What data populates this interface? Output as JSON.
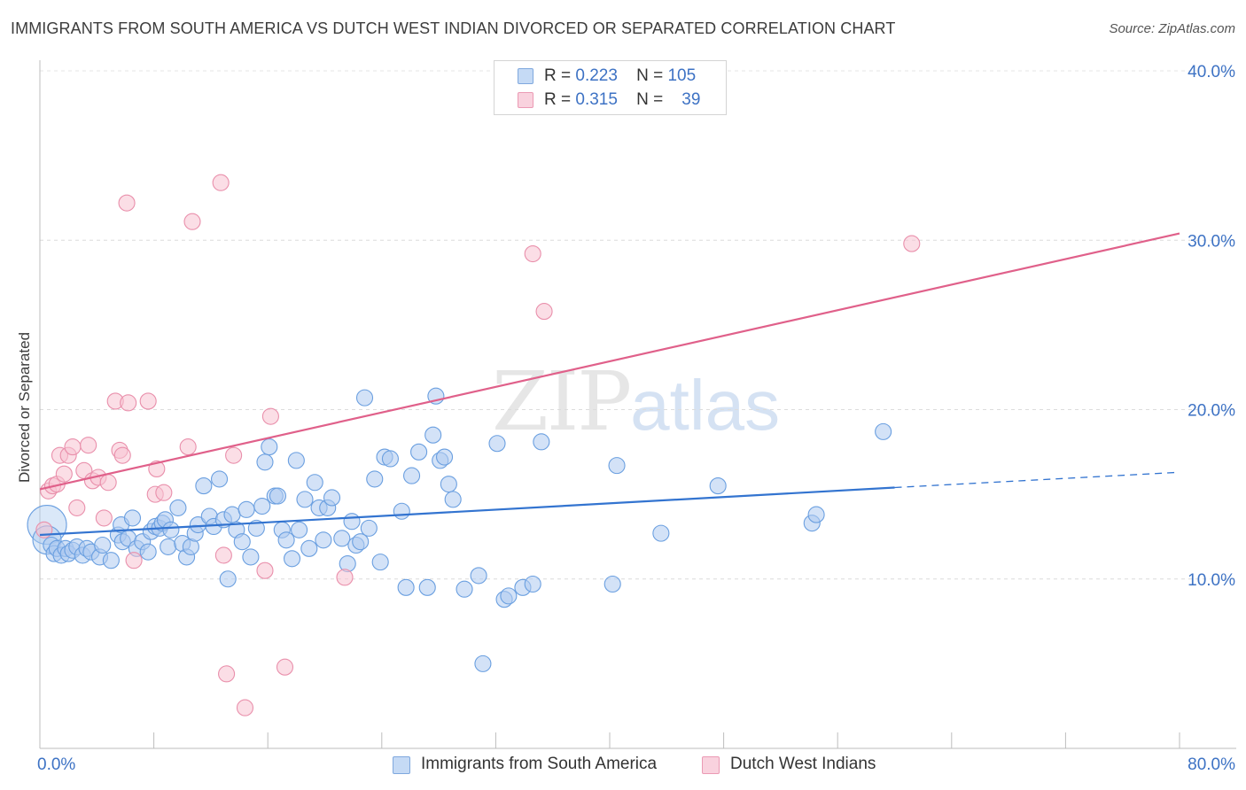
{
  "header": {
    "title": "IMMIGRANTS FROM SOUTH AMERICA VS DUTCH WEST INDIAN DIVORCED OR SEPARATED CORRELATION CHART",
    "source": "Source: ZipAtlas.com"
  },
  "watermark": {
    "zip": "ZIP",
    "atlas": "atlas"
  },
  "legend_top": {
    "rows": [
      {
        "r_label": "R =",
        "r_value": "0.223",
        "n_label": "N =",
        "n_value": "105",
        "color": "#aecbf0"
      },
      {
        "r_label": "R =",
        "r_value": "0.315",
        "n_label": "N =",
        "n_value": "39",
        "color": "#f7c3d2"
      }
    ]
  },
  "chart_data": {
    "type": "scatter",
    "title": "IMMIGRANTS FROM SOUTH AMERICA VS DUTCH WEST INDIAN DIVORCED OR SEPARATED CORRELATION CHART",
    "xlabel": "",
    "ylabel": "Divorced or Separated",
    "xlim": [
      0,
      80
    ],
    "ylim": [
      0,
      40
    ],
    "x_tick_labels": [
      "0.0%",
      "80.0%"
    ],
    "y_ticks": [
      10,
      20,
      30,
      40
    ],
    "y_tick_labels": [
      "10.0%",
      "20.0%",
      "30.0%",
      "40.0%"
    ],
    "grid": true,
    "legend_position": "bottom-center",
    "series": [
      {
        "name": "Immigrants from South America",
        "color": "#6a9fe0",
        "fill": "#aecbf0",
        "trend": {
          "x0": 0,
          "y0": 12.6,
          "x1": 60,
          "y1": 15.4,
          "dashed_to_x": 80,
          "dashed_to_y": 16.3,
          "color": "#3374d0"
        },
        "points": [
          [
            0.5,
            13.2
          ],
          [
            0.5,
            12.3
          ],
          [
            0.8,
            12.0
          ],
          [
            1,
            11.5
          ],
          [
            1.2,
            11.8
          ],
          [
            1.5,
            11.4
          ],
          [
            1.8,
            11.8
          ],
          [
            2,
            11.5
          ],
          [
            2.3,
            11.7
          ],
          [
            2.6,
            11.9
          ],
          [
            3,
            11.4
          ],
          [
            3.3,
            11.8
          ],
          [
            3.6,
            11.6
          ],
          [
            4.2,
            11.3
          ],
          [
            4.4,
            12.0
          ],
          [
            5,
            11.1
          ],
          [
            5.5,
            12.6
          ],
          [
            5.7,
            13.2
          ],
          [
            5.8,
            12.2
          ],
          [
            6.2,
            12.4
          ],
          [
            6.5,
            13.6
          ],
          [
            6.8,
            11.8
          ],
          [
            7.2,
            12.2
          ],
          [
            7.6,
            11.6
          ],
          [
            7.8,
            12.8
          ],
          [
            8.1,
            13.1
          ],
          [
            8.4,
            13.0
          ],
          [
            8.6,
            13.3
          ],
          [
            8.8,
            13.5
          ],
          [
            9,
            11.9
          ],
          [
            9.2,
            12.9
          ],
          [
            9.7,
            14.2
          ],
          [
            10.0,
            12.1
          ],
          [
            10.3,
            11.3
          ],
          [
            10.6,
            11.9
          ],
          [
            10.9,
            12.7
          ],
          [
            11.1,
            13.2
          ],
          [
            11.5,
            15.5
          ],
          [
            11.9,
            13.7
          ],
          [
            12.2,
            13.1
          ],
          [
            12.6,
            15.9
          ],
          [
            12.9,
            13.5
          ],
          [
            13.2,
            10.0
          ],
          [
            13.5,
            13.8
          ],
          [
            13.8,
            12.9
          ],
          [
            14.2,
            12.2
          ],
          [
            14.5,
            14.1
          ],
          [
            14.8,
            11.3
          ],
          [
            15.2,
            13.0
          ],
          [
            15.6,
            14.3
          ],
          [
            15.8,
            16.9
          ],
          [
            16.1,
            17.8
          ],
          [
            16.5,
            14.9
          ],
          [
            16.7,
            14.9
          ],
          [
            17.0,
            12.9
          ],
          [
            17.3,
            12.3
          ],
          [
            17.7,
            11.2
          ],
          [
            18.0,
            17.0
          ],
          [
            18.2,
            12.9
          ],
          [
            18.6,
            14.7
          ],
          [
            18.9,
            11.8
          ],
          [
            19.3,
            15.7
          ],
          [
            19.6,
            14.2
          ],
          [
            19.9,
            12.3
          ],
          [
            20.2,
            14.2
          ],
          [
            20.5,
            14.8
          ],
          [
            21.2,
            12.4
          ],
          [
            21.6,
            10.9
          ],
          [
            21.9,
            13.4
          ],
          [
            22.2,
            12.0
          ],
          [
            22.5,
            12.2
          ],
          [
            22.8,
            20.7
          ],
          [
            23.1,
            13.0
          ],
          [
            23.5,
            15.9
          ],
          [
            23.9,
            11.0
          ],
          [
            24.2,
            17.2
          ],
          [
            24.6,
            17.1
          ],
          [
            25.4,
            14.0
          ],
          [
            25.7,
            9.5
          ],
          [
            26.1,
            16.1
          ],
          [
            26.6,
            17.5
          ],
          [
            27.2,
            9.5
          ],
          [
            27.6,
            18.5
          ],
          [
            27.8,
            20.8
          ],
          [
            28.1,
            17.0
          ],
          [
            28.4,
            17.2
          ],
          [
            28.7,
            15.6
          ],
          [
            29.0,
            14.7
          ],
          [
            29.8,
            9.4
          ],
          [
            30.8,
            10.2
          ],
          [
            31.1,
            5.0
          ],
          [
            32.1,
            18.0
          ],
          [
            32.6,
            8.8
          ],
          [
            32.9,
            9.0
          ],
          [
            33.9,
            9.5
          ],
          [
            34.6,
            9.7
          ],
          [
            35.2,
            18.1
          ],
          [
            40.2,
            9.7
          ],
          [
            40.5,
            16.7
          ],
          [
            43.6,
            12.7
          ],
          [
            47.6,
            15.5
          ],
          [
            54.2,
            13.3
          ],
          [
            54.5,
            13.8
          ],
          [
            59.2,
            18.7
          ]
        ]
      },
      {
        "name": "Dutch West Indians",
        "color": "#e98fab",
        "fill": "#f7c3d2",
        "trend": {
          "x0": 0,
          "y0": 15.3,
          "x1": 80,
          "y1": 30.4,
          "color": "#e0608a"
        },
        "points": [
          [
            0.3,
            12.9
          ],
          [
            0.6,
            15.2
          ],
          [
            0.9,
            15.5
          ],
          [
            1.2,
            15.6
          ],
          [
            1.4,
            17.3
          ],
          [
            1.7,
            16.2
          ],
          [
            2,
            17.3
          ],
          [
            2.3,
            17.8
          ],
          [
            2.6,
            14.2
          ],
          [
            3.1,
            16.4
          ],
          [
            3.4,
            17.9
          ],
          [
            3.7,
            15.8
          ],
          [
            4.1,
            16.0
          ],
          [
            4.5,
            13.6
          ],
          [
            4.8,
            15.7
          ],
          [
            5.3,
            20.5
          ],
          [
            5.6,
            17.6
          ],
          [
            5.8,
            17.3
          ],
          [
            6.1,
            32.2
          ],
          [
            6.2,
            20.4
          ],
          [
            6.6,
            11.1
          ],
          [
            7.6,
            20.5
          ],
          [
            8.1,
            15.0
          ],
          [
            8.2,
            16.5
          ],
          [
            8.7,
            15.1
          ],
          [
            10.4,
            17.8
          ],
          [
            10.7,
            31.1
          ],
          [
            12.7,
            33.4
          ],
          [
            12.9,
            11.4
          ],
          [
            13.1,
            4.4
          ],
          [
            13.6,
            17.3
          ],
          [
            14.4,
            2.4
          ],
          [
            15.8,
            10.5
          ],
          [
            16.2,
            19.6
          ],
          [
            17.2,
            4.8
          ],
          [
            21.4,
            10.1
          ],
          [
            34.6,
            29.2
          ],
          [
            35.4,
            25.8
          ],
          [
            61.2,
            29.8
          ]
        ]
      }
    ]
  },
  "legend_bottom": {
    "items": [
      {
        "label": "Immigrants from South America",
        "color": "#aecbf0"
      },
      {
        "label": "Dutch West Indians",
        "color": "#f7c3d2"
      }
    ]
  }
}
